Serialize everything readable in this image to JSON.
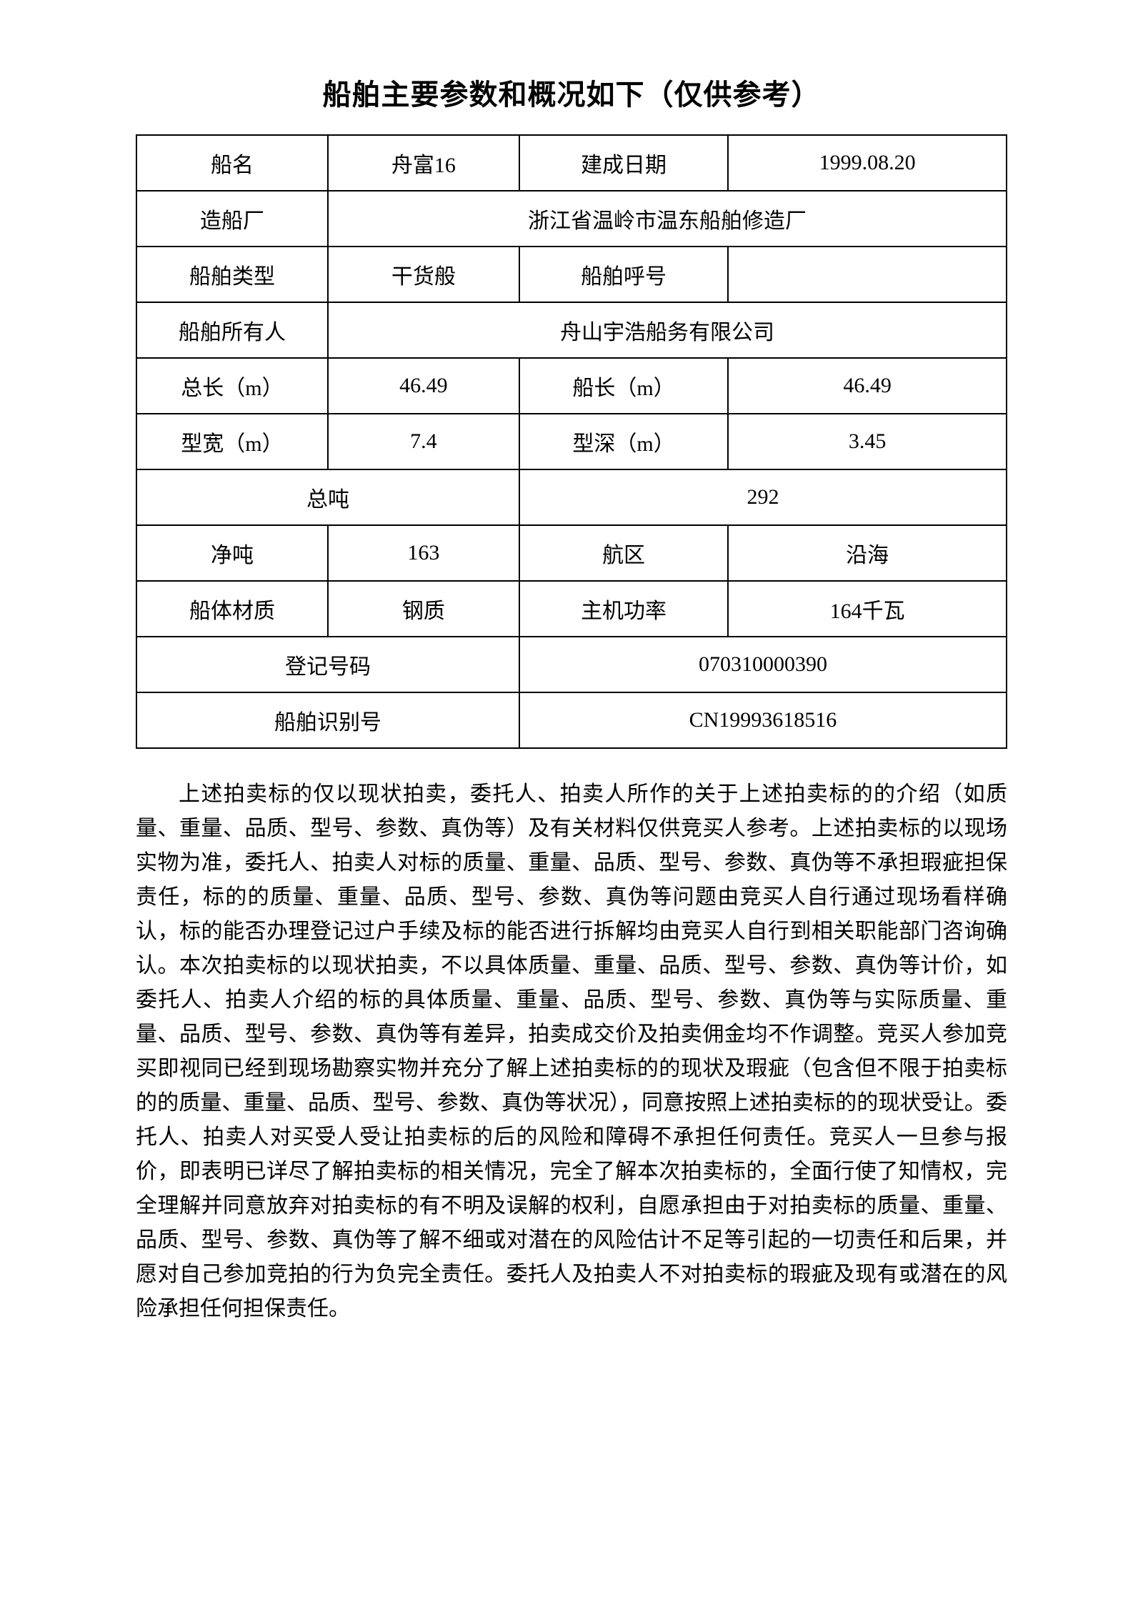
{
  "title": "船舶主要参数和概况如下（仅供参考）",
  "table": {
    "rows": [
      {
        "c1": "船名",
        "c2": "舟富16",
        "c3": "建成日期",
        "c4": "1999.08.20"
      },
      {
        "c1": "造船厂",
        "c234": "浙江省温岭市温东船舶修造厂"
      },
      {
        "c1": "船舶类型",
        "c2": "干货般",
        "c3": "船舶呼号",
        "c4": ""
      },
      {
        "c1": "船舶所有人",
        "c234": "舟山宇浩船务有限公司"
      },
      {
        "c1": "总长（m）",
        "c2": "46.49",
        "c3": "船长（m）",
        "c4": "46.49"
      },
      {
        "c1": "型宽（m）",
        "c2": "7.4",
        "c3": "型深（m）",
        "c4": "3.45"
      },
      {
        "c12": "总吨",
        "c34": "292"
      },
      {
        "c1": "净吨",
        "c2": "163",
        "c3": "航区",
        "c4": "沿海"
      },
      {
        "c1": "船体材质",
        "c2": "钢质",
        "c3": "主机功率",
        "c4": "164千瓦"
      },
      {
        "c12": "登记号码",
        "c34": "070310000390"
      },
      {
        "c12": "船舶识别号",
        "c34": "CN19993618516"
      }
    ]
  },
  "paragraph": "上述拍卖标的仅以现状拍卖，委托人、拍卖人所作的关于上述拍卖标的的介绍（如质量、重量、品质、型号、参数、真伪等）及有关材料仅供竞买人参考。上述拍卖标的以现场实物为准，委托人、拍卖人对标的质量、重量、品质、型号、参数、真伪等不承担瑕疵担保责任，标的的质量、重量、品质、型号、参数、真伪等问题由竞买人自行通过现场看样确认，标的能否办理登记过户手续及标的能否进行拆解均由竞买人自行到相关职能部门咨询确认。本次拍卖标的以现状拍卖，不以具体质量、重量、品质、型号、参数、真伪等计价，如委托人、拍卖人介绍的标的具体质量、重量、品质、型号、参数、真伪等与实际质量、重量、品质、型号、参数、真伪等有差异，拍卖成交价及拍卖佣金均不作调整。竞买人参加竞买即视同已经到现场勘察实物并充分了解上述拍卖标的的现状及瑕疵（包含但不限于拍卖标的的质量、重量、品质、型号、参数、真伪等状况），同意按照上述拍卖标的的现状受让。委托人、拍卖人对买受人受让拍卖标的后的风险和障碍不承担任何责任。竞买人一旦参与报价，即表明已详尽了解拍卖标的相关情况，完全了解本次拍卖标的，全面行使了知情权，完全理解并同意放弃对拍卖标的有不明及误解的权利，自愿承担由于对拍卖标的质量、重量、品质、型号、参数、真伪等了解不细或对潜在的风险估计不足等引起的一切责任和后果，并愿对自己参加竞拍的行为负完全责任。委托人及拍卖人不对拍卖标的瑕疵及现有或潜在的风险承担任何担保责任。",
  "styling": {
    "border_color": "#000000",
    "border_width": 2,
    "text_color": "#000000",
    "background_color": "#ffffff",
    "title_fontsize": 40,
    "cell_fontsize": 30,
    "body_fontsize": 30,
    "font_family": "SimSun"
  }
}
